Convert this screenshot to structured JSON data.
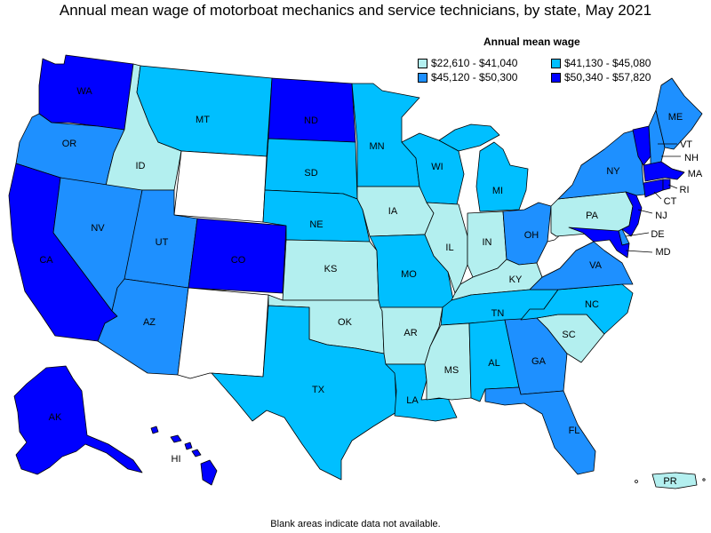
{
  "title": "Annual mean wage of motorboat mechanics and service technicians, by state, May 2021",
  "legend": {
    "title": "Annual mean wage",
    "items": [
      {
        "label": "$22,610 - $41,040",
        "color": "#b3efef"
      },
      {
        "label": "$41,130 - $45,080",
        "color": "#00bfff"
      },
      {
        "label": "$45,120 - $50,300",
        "color": "#1e90ff"
      },
      {
        "label": "$50,340 - $57,820",
        "color": "#0000ff"
      }
    ]
  },
  "footnote": "Blank areas indicate data not available.",
  "no_data_color": "#ffffff",
  "states": {
    "WA": {
      "label": "WA",
      "bin": 3
    },
    "OR": {
      "label": "OR",
      "bin": 2
    },
    "CA": {
      "label": "CA",
      "bin": 3
    },
    "ID": {
      "label": "ID",
      "bin": 0
    },
    "NV": {
      "label": "NV",
      "bin": 2
    },
    "MT": {
      "label": "MT",
      "bin": 1
    },
    "WY": {
      "label": "",
      "bin": null
    },
    "UT": {
      "label": "UT",
      "bin": 2
    },
    "AZ": {
      "label": "AZ",
      "bin": 2
    },
    "CO": {
      "label": "CO",
      "bin": 3
    },
    "NM": {
      "label": "",
      "bin": null
    },
    "ND": {
      "label": "ND",
      "bin": 3
    },
    "SD": {
      "label": "SD",
      "bin": 1
    },
    "NE": {
      "label": "NE",
      "bin": 1
    },
    "KS": {
      "label": "KS",
      "bin": 0
    },
    "OK": {
      "label": "OK",
      "bin": 0
    },
    "TX": {
      "label": "TX",
      "bin": 1
    },
    "MN": {
      "label": "MN",
      "bin": 1
    },
    "IA": {
      "label": "IA",
      "bin": 0
    },
    "MO": {
      "label": "MO",
      "bin": 1
    },
    "AR": {
      "label": "AR",
      "bin": 0
    },
    "LA": {
      "label": "LA",
      "bin": 1
    },
    "WI": {
      "label": "WI",
      "bin": 1
    },
    "IL": {
      "label": "IL",
      "bin": 0
    },
    "MI": {
      "label": "MI",
      "bin": 1
    },
    "IN": {
      "label": "IN",
      "bin": 0
    },
    "OH": {
      "label": "OH",
      "bin": 2
    },
    "KY": {
      "label": "KY",
      "bin": 0
    },
    "TN": {
      "label": "TN",
      "bin": 1
    },
    "MS": {
      "label": "MS",
      "bin": 0
    },
    "AL": {
      "label": "AL",
      "bin": 1
    },
    "GA": {
      "label": "GA",
      "bin": 2
    },
    "FL": {
      "label": "FL",
      "bin": 2
    },
    "SC": {
      "label": "SC",
      "bin": 0
    },
    "NC": {
      "label": "NC",
      "bin": 1
    },
    "VA": {
      "label": "VA",
      "bin": 2
    },
    "WV": {
      "label": "",
      "bin": null
    },
    "PA": {
      "label": "PA",
      "bin": 0
    },
    "NY": {
      "label": "NY",
      "bin": 2
    },
    "ME": {
      "label": "ME",
      "bin": 2
    },
    "VT": {
      "label": "VT",
      "bin": 3
    },
    "NH": {
      "label": "NH",
      "bin": 2
    },
    "MA": {
      "label": "MA",
      "bin": 3
    },
    "RI": {
      "label": "RI",
      "bin": 3
    },
    "CT": {
      "label": "CT",
      "bin": 3
    },
    "NJ": {
      "label": "NJ",
      "bin": 3
    },
    "DE": {
      "label": "DE",
      "bin": 2
    },
    "MD": {
      "label": "MD",
      "bin": 3
    },
    "AK": {
      "label": "AK",
      "bin": 3
    },
    "HI": {
      "label": "HI",
      "bin": 3
    },
    "PR": {
      "label": "PR",
      "bin": 0
    }
  }
}
